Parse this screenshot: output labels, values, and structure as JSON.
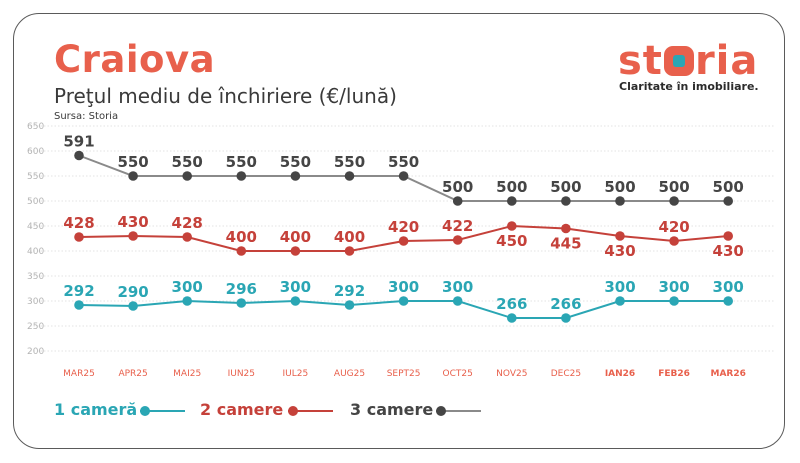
{
  "header": {
    "title": "Craiova",
    "subtitle": "Preţul mediu de închiriere (€/lună)",
    "source": "Sursa: Storia",
    "brand_left": "st",
    "brand_right": "ria",
    "brand_tagline": "Claritate în imobiliare."
  },
  "colors": {
    "accent": "#e8604c",
    "one_room": "#2aa6b4",
    "two_rooms": "#c5413a",
    "three_rooms": "#454545",
    "three_rooms_line": "#8a8a8a"
  },
  "chart_data": {
    "type": "line",
    "title": "Preţul mediu de închiriere (€/lună)",
    "categories": [
      "MAR25",
      "APR25",
      "MAI25",
      "IUN25",
      "IUL25",
      "AUG25",
      "SEPT25",
      "OCT25",
      "NOV25",
      "DEC25",
      "IAN26",
      "FEB26",
      "MAR26"
    ],
    "bold_categories": [
      "IAN26",
      "FEB26",
      "MAR26"
    ],
    "ylim": [
      200,
      650
    ],
    "yticks": [
      650,
      600,
      550,
      500,
      450,
      400,
      350,
      300,
      250,
      200
    ],
    "grid": true,
    "legend": "bottom-left",
    "series": [
      {
        "name": "1 cameră",
        "values": [
          292,
          290,
          300,
          296,
          300,
          292,
          300,
          300,
          266,
          266,
          300,
          300,
          300
        ]
      },
      {
        "name": "2 camere",
        "values": [
          428,
          430,
          428,
          400,
          400,
          400,
          420,
          422,
          450,
          445,
          430,
          420,
          430
        ]
      },
      {
        "name": "3 camere",
        "values": [
          591,
          550,
          550,
          550,
          550,
          550,
          550,
          500,
          500,
          500,
          500,
          500,
          500
        ]
      }
    ]
  }
}
